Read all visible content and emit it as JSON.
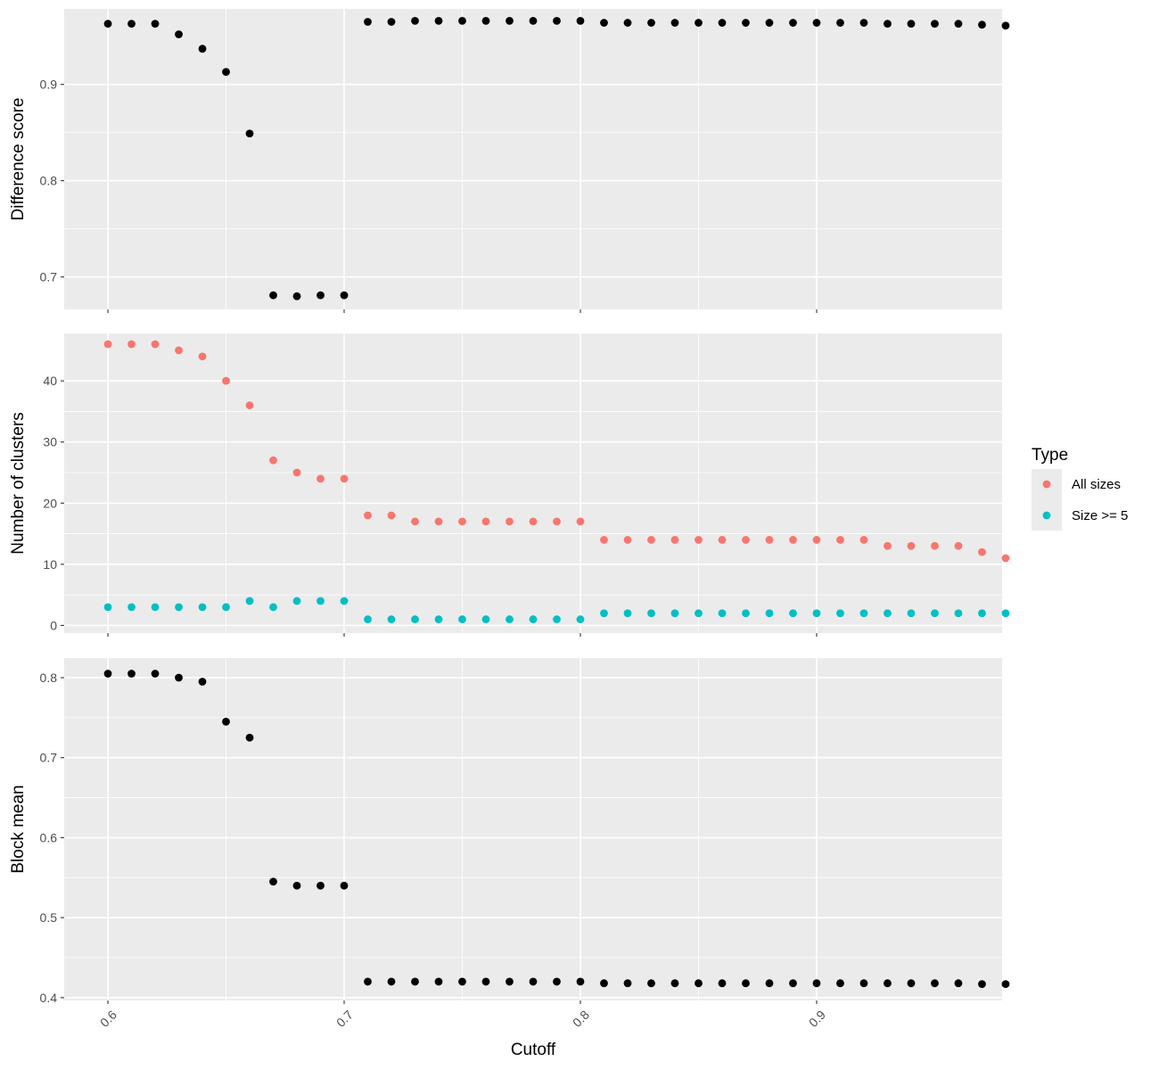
{
  "chart_data": [
    {
      "type": "scatter",
      "ylabel": "Difference score",
      "xlim": [
        0.5815,
        0.9785
      ],
      "ylim": [
        0.6663,
        0.9784
      ],
      "xticks": [
        0.6,
        0.7,
        0.8,
        0.9
      ],
      "yticks": [
        0.7,
        0.8,
        0.9
      ],
      "yticklabels": [
        "0.7",
        "0.8",
        "0.9"
      ],
      "grid": true,
      "series": [
        {
          "color": "#000000",
          "x": [
            0.6,
            0.61,
            0.62,
            0.63,
            0.64,
            0.65,
            0.66,
            0.67,
            0.68,
            0.69,
            0.7,
            0.71,
            0.72,
            0.73,
            0.74,
            0.75,
            0.76,
            0.77,
            0.78,
            0.79,
            0.8,
            0.81,
            0.82,
            0.83,
            0.84,
            0.85,
            0.86,
            0.87,
            0.88,
            0.89,
            0.9,
            0.91,
            0.92,
            0.93,
            0.94,
            0.95,
            0.96,
            0.97,
            0.98
          ],
          "y": [
            0.963,
            0.963,
            0.963,
            0.952,
            0.937,
            0.913,
            0.849,
            0.681,
            0.68,
            0.681,
            0.681,
            0.965,
            0.965,
            0.966,
            0.966,
            0.966,
            0.966,
            0.966,
            0.966,
            0.966,
            0.966,
            0.964,
            0.964,
            0.964,
            0.964,
            0.964,
            0.964,
            0.964,
            0.964,
            0.964,
            0.964,
            0.964,
            0.964,
            0.963,
            0.963,
            0.963,
            0.963,
            0.962,
            0.961
          ]
        }
      ]
    },
    {
      "type": "scatter",
      "ylabel": "Number of clusters",
      "xlim": [
        0.5815,
        0.9785
      ],
      "ylim": [
        -1.25,
        47.75
      ],
      "xticks": [
        0.6,
        0.7,
        0.8,
        0.9
      ],
      "yticks": [
        0,
        10,
        20,
        30,
        40
      ],
      "yticklabels": [
        "0",
        "10",
        "20",
        "30",
        "40"
      ],
      "grid": true,
      "legend": {
        "title": "Type",
        "position": "right"
      },
      "series": [
        {
          "name": "All sizes",
          "color": "#F8766D",
          "x": [
            0.6,
            0.61,
            0.62,
            0.63,
            0.64,
            0.65,
            0.66,
            0.67,
            0.68,
            0.69,
            0.7,
            0.71,
            0.72,
            0.73,
            0.74,
            0.75,
            0.76,
            0.77,
            0.78,
            0.79,
            0.8,
            0.81,
            0.82,
            0.83,
            0.84,
            0.85,
            0.86,
            0.87,
            0.88,
            0.89,
            0.9,
            0.91,
            0.92,
            0.93,
            0.94,
            0.95,
            0.96,
            0.97,
            0.98
          ],
          "y": [
            46,
            46,
            46,
            45,
            44,
            40,
            36,
            27,
            25,
            24,
            24,
            18,
            18,
            17,
            17,
            17,
            17,
            17,
            17,
            17,
            17,
            14,
            14,
            14,
            14,
            14,
            14,
            14,
            14,
            14,
            14,
            14,
            14,
            13,
            13,
            13,
            13,
            12,
            11
          ]
        },
        {
          "name": "Size >= 5",
          "color": "#00BFC4",
          "x": [
            0.6,
            0.61,
            0.62,
            0.63,
            0.64,
            0.65,
            0.66,
            0.67,
            0.68,
            0.69,
            0.7,
            0.71,
            0.72,
            0.73,
            0.74,
            0.75,
            0.76,
            0.77,
            0.78,
            0.79,
            0.8,
            0.81,
            0.82,
            0.83,
            0.84,
            0.85,
            0.86,
            0.87,
            0.88,
            0.89,
            0.9,
            0.91,
            0.92,
            0.93,
            0.94,
            0.95,
            0.96,
            0.97,
            0.98
          ],
          "y": [
            3,
            3,
            3,
            3,
            3,
            3,
            4,
            3,
            4,
            4,
            4,
            1,
            1,
            1,
            1,
            1,
            1,
            1,
            1,
            1,
            1,
            2,
            2,
            2,
            2,
            2,
            2,
            2,
            2,
            2,
            2,
            2,
            2,
            2,
            2,
            2,
            2,
            2,
            2
          ]
        }
      ]
    },
    {
      "type": "scatter",
      "ylabel": "Block mean",
      "xlabel": "Cutoff",
      "xlim": [
        0.5815,
        0.9785
      ],
      "ylim": [
        0.3965,
        0.8245
      ],
      "xticks": [
        0.6,
        0.7,
        0.8,
        0.9
      ],
      "xticklabels": [
        "0.6",
        "0.7",
        "0.8",
        "0.9"
      ],
      "yticks": [
        0.4,
        0.5,
        0.6,
        0.7,
        0.8
      ],
      "yticklabels": [
        "0.4",
        "0.5",
        "0.6",
        "0.7",
        "0.8"
      ],
      "grid": true,
      "series": [
        {
          "color": "#000000",
          "x": [
            0.6,
            0.61,
            0.62,
            0.63,
            0.64,
            0.65,
            0.66,
            0.67,
            0.68,
            0.69,
            0.7,
            0.71,
            0.72,
            0.73,
            0.74,
            0.75,
            0.76,
            0.77,
            0.78,
            0.79,
            0.8,
            0.81,
            0.82,
            0.83,
            0.84,
            0.85,
            0.86,
            0.87,
            0.88,
            0.89,
            0.9,
            0.91,
            0.92,
            0.93,
            0.94,
            0.95,
            0.96,
            0.97,
            0.98
          ],
          "y": [
            0.805,
            0.805,
            0.805,
            0.8,
            0.795,
            0.745,
            0.725,
            0.545,
            0.54,
            0.54,
            0.54,
            0.42,
            0.42,
            0.42,
            0.42,
            0.42,
            0.42,
            0.42,
            0.42,
            0.42,
            0.42,
            0.418,
            0.418,
            0.418,
            0.418,
            0.418,
            0.418,
            0.418,
            0.418,
            0.418,
            0.418,
            0.418,
            0.418,
            0.418,
            0.418,
            0.418,
            0.418,
            0.417,
            0.417
          ]
        }
      ]
    }
  ]
}
